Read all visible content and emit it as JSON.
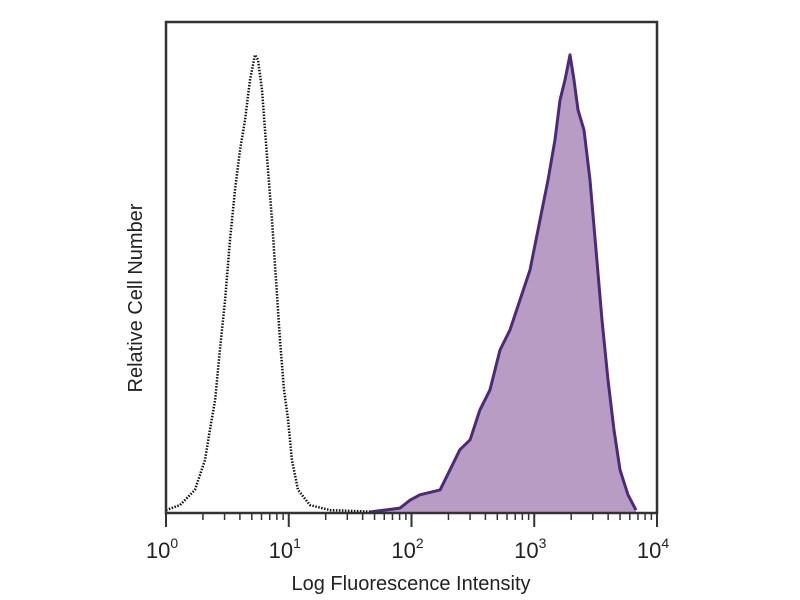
{
  "chart_data": {
    "type": "area",
    "title": "",
    "xlabel": "Log Fluorescence Intensity",
    "ylabel": "Relative Cell Number",
    "x_scale": "log",
    "xlim": [
      1,
      10000
    ],
    "ylim": [
      0,
      100
    ],
    "grid": false,
    "x_ticks": [
      {
        "base": "10",
        "exp": "0",
        "value": 1
      },
      {
        "base": "10",
        "exp": "1",
        "value": 10
      },
      {
        "base": "10",
        "exp": "2",
        "value": 100
      },
      {
        "base": "10",
        "exp": "3",
        "value": 1000
      },
      {
        "base": "10",
        "exp": "4",
        "value": 10000
      }
    ],
    "series": [
      {
        "style": "dotted-outline",
        "color": "#111111",
        "fill": "none",
        "x": [
          1.0,
          1.3,
          1.72,
          2.08,
          2.28,
          2.51,
          2.75,
          3.03,
          3.32,
          3.65,
          4.01,
          4.4,
          4.83,
          5.31,
          5.62,
          6.06,
          6.41,
          6.78,
          7.31,
          7.87,
          8.48,
          9.15,
          9.86,
          10.6,
          11.9,
          14.9,
          21.7,
          55.4,
          97.2
        ],
        "y": [
          0.6,
          1.6,
          4.7,
          10.8,
          16.9,
          23.0,
          33.2,
          43.4,
          55.6,
          65.8,
          73.9,
          80.0,
          88.2,
          93.3,
          92.3,
          86.2,
          78.0,
          69.9,
          59.7,
          47.5,
          35.2,
          25.1,
          19.1,
          10.8,
          4.7,
          1.6,
          0.6,
          0.2,
          0.2
        ]
      },
      {
        "style": "filled",
        "color": "#4b2a7a",
        "fill": "#b99cc4",
        "x": [
          45.9,
          80.6,
          97.2,
          117,
          171,
          248,
          300,
          361,
          436,
          526,
          634,
          765,
          923,
          1113,
          1294,
          1476,
          1621,
          1780,
          1955,
          2108,
          2271,
          2542,
          2845,
          3184,
          3564,
          3989,
          4465,
          4997,
          5807,
          6748
        ],
        "y": [
          0.2,
          1.0,
          2.6,
          3.7,
          4.7,
          12.9,
          14.9,
          21.0,
          25.1,
          33.2,
          37.3,
          43.4,
          49.5,
          59.7,
          67.8,
          76.0,
          84.1,
          88.2,
          93.3,
          88.2,
          82.1,
          78.0,
          67.8,
          53.6,
          39.3,
          27.1,
          16.9,
          8.8,
          3.7,
          0.6
        ]
      }
    ]
  }
}
